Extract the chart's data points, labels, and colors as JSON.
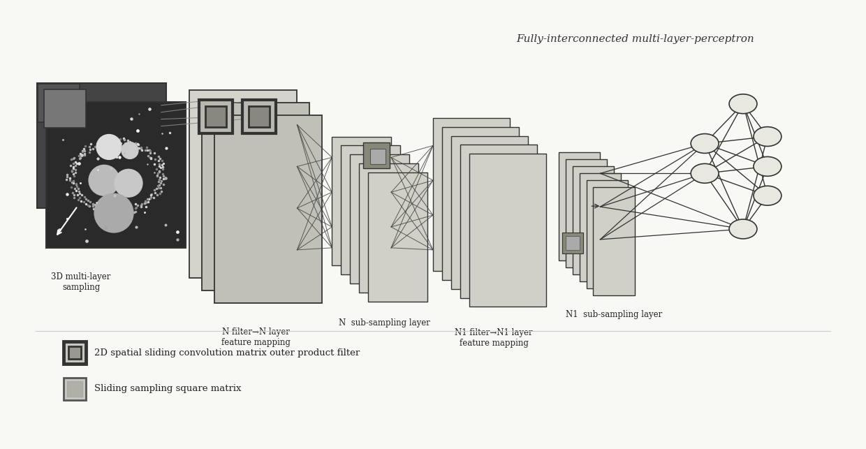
{
  "title": "Fully-interconnected multi-layer-perceptron",
  "bg_color": "#f8f8f5",
  "light_gray": "#cccccc",
  "mid_gray": "#aaaaaa",
  "dark_gray": "#777777",
  "border_dark": "#333333",
  "border_mid": "#555555",
  "labels": {
    "scan": "3D multi-layer\nsampling",
    "n_filter": "N filter→N layer\nfeature mapping",
    "n_sub": "N  sub-sampling layer",
    "n1_filter": "N1 filter→N1 layer\nfeature mapping",
    "n1_sub": "N1  sub-sampling layer"
  },
  "legend": [
    "2D spatial sliding convolution matrix outer product filter",
    "Sliding sampling square matrix"
  ]
}
